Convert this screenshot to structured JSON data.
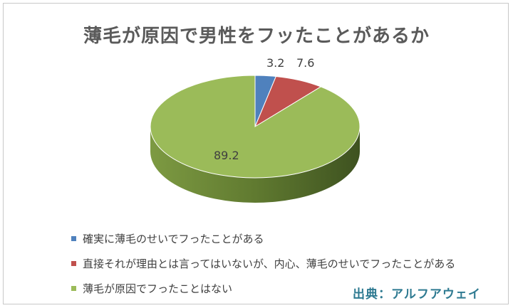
{
  "chart_data": {
    "type": "pie",
    "title": "薄毛が原因で男性をフッたことがあるか",
    "slices": [
      {
        "label": "確実に薄毛のせいでフったことがある",
        "value": 3.2,
        "value_label": "3.2",
        "color": "#4f81bd"
      },
      {
        "label": "直接それが理由とは言ってはいないが、内心、薄毛のせいでフったことがある",
        "value": 7.6,
        "value_label": "7.6",
        "color": "#c0504d"
      },
      {
        "label": "薄毛が原因でフったことはない",
        "value": 89.2,
        "value_label": "89.2",
        "color": "#9bbb59"
      }
    ],
    "legend_position": "bottom-left"
  },
  "source": "出典：アルフアウェイ"
}
